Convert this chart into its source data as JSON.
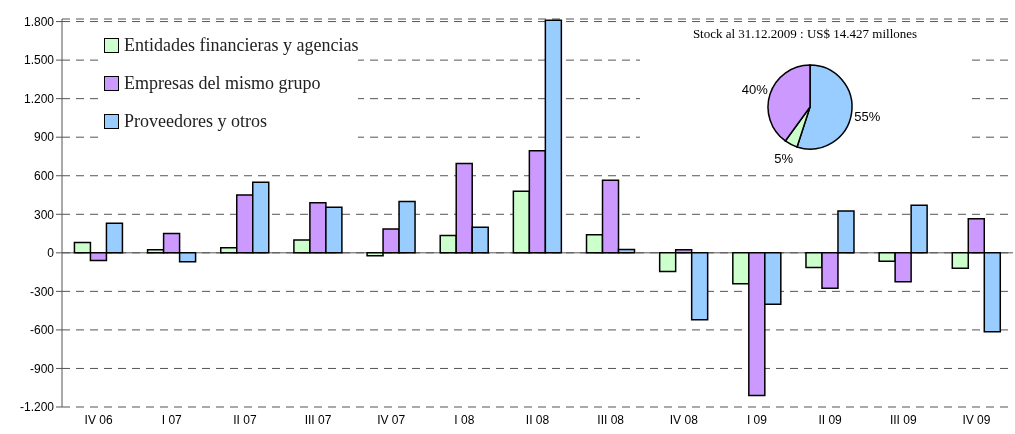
{
  "chart_data": [
    {
      "type": "bar",
      "categories": [
        "IV 06",
        "I 07",
        "II 07",
        "III 07",
        "IV 07",
        "I 08",
        "II 08",
        "III 08",
        "IV 08",
        "I 09",
        "II 09",
        "III 09",
        "IV 09"
      ],
      "series": [
        {
          "name": "Entidades financieras y agencias",
          "color": "#ccffcc",
          "values": [
            80,
            20,
            40,
            100,
            -20,
            135,
            480,
            140,
            -145,
            -240,
            -115,
            -65,
            -120
          ]
        },
        {
          "name": "Empresas del mismo grupo",
          "color": "#cc99ff",
          "values": [
            -60,
            150,
            450,
            390,
            185,
            695,
            795,
            565,
            20,
            -1110,
            -275,
            -225,
            265
          ]
        },
        {
          "name": "Proveedores y otros",
          "color": "#99ccff",
          "values": [
            230,
            -70,
            550,
            355,
            400,
            200,
            1810,
            25,
            -520,
            -400,
            325,
            370,
            -615
          ]
        }
      ],
      "ylim": [
        -1200,
        1820
      ],
      "yticks": [
        {
          "value": -1200,
          "label": "-1.200"
        },
        -900,
        -600,
        -300,
        0,
        300,
        600,
        900,
        {
          "value": 1200,
          "label": "1.200"
        },
        {
          "value": 1500,
          "label": "1.500"
        },
        {
          "value": 1800,
          "label": "1.800"
        }
      ],
      "grid": "y",
      "legend": "top left"
    },
    {
      "type": "pie",
      "title": "Stock al 31.12.2009 : US$ 14.427 millones",
      "categories": [
        null,
        null,
        null
      ],
      "values": [
        55,
        5,
        40
      ],
      "colors": [
        "#99ccff",
        "#ccffcc",
        "#cc99ff"
      ],
      "value_labels": [
        "55%",
        "5%",
        "40%"
      ]
    }
  ]
}
